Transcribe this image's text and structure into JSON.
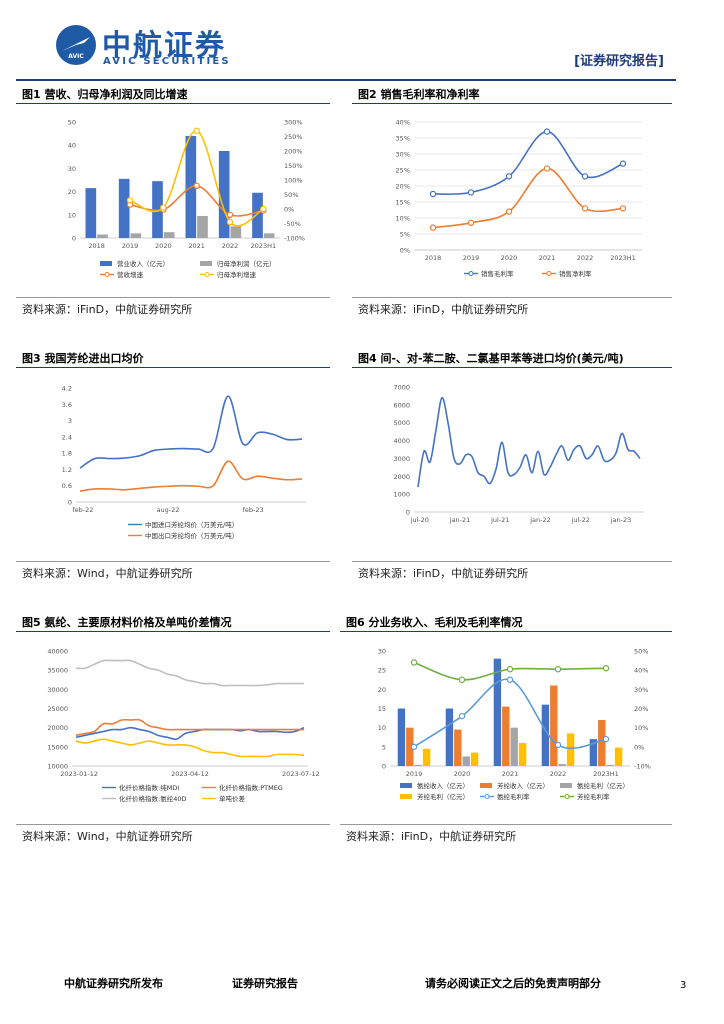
{
  "header": {
    "logo_cn": "中航证券",
    "logo_en": "AVIC SECURITIES",
    "logo_badge": "AVIC",
    "report_type": "[证券研究报告]"
  },
  "figures": [
    {
      "title": "图1 营收、归母净利润及同比增速",
      "source": "资料来源：iFinD，中航证券研究所"
    },
    {
      "title": "图2 销售毛利率和净利率",
      "source": "资料来源：iFinD，中航证券研究所"
    },
    {
      "title": "图3 我国芳纶进出口均价",
      "source": "资料来源：Wind，中航证券研究所"
    },
    {
      "title": "图4 间-、对-苯二胺、二氯基甲苯等进口均价(美元/吨)",
      "source": "资料来源：iFinD，中航证券研究所"
    },
    {
      "title": "图5 氨纶、主要原材料价格及单吨价差情况",
      "source": "资料来源：Wind，中航证券研究所"
    },
    {
      "title": "图6 分业务收入、毛利及毛利率情况",
      "source": "资料来源：iFinD，中航证券研究所"
    }
  ],
  "footer": {
    "left": "中航证券研究所发布",
    "center": "证券研究报告",
    "right": "请务必阅读正文之后的免责声明部分",
    "page": "3"
  },
  "chart_data": [
    {
      "type": "bar",
      "id": "c1",
      "categories": [
        "2018",
        "2019",
        "2020",
        "2021",
        "2022",
        "2023H1"
      ],
      "series": [
        {
          "name": "营业收入（亿元）",
          "kind": "bar",
          "axis": "left",
          "color": "#4472c4",
          "values": [
            21.5,
            25.5,
            24.5,
            44,
            37.5,
            19.5
          ]
        },
        {
          "name": "归母净利润（亿元）",
          "kind": "bar",
          "axis": "left",
          "color": "#a5a5a5",
          "values": [
            1.5,
            2,
            2.5,
            9.5,
            5,
            2
          ]
        },
        {
          "name": "营收增速",
          "kind": "line",
          "axis": "right",
          "color": "#ed7d31",
          "values": [
            null,
            15,
            -2,
            80,
            -20,
            -5
          ]
        },
        {
          "name": "归母净利增速",
          "kind": "line",
          "axis": "right",
          "color": "#ffc000",
          "values": [
            null,
            30,
            5,
            270,
            -45,
            0
          ]
        }
      ],
      "ylim": [
        0,
        50
      ],
      "yticks": [
        "0",
        "10",
        "20",
        "30",
        "40",
        "50"
      ],
      "y2lim": [
        -100,
        300
      ],
      "y2ticks": [
        "-100%",
        "-50%",
        "0%",
        "50%",
        "100%",
        "150%",
        "200%",
        "250%",
        "300%"
      ]
    },
    {
      "type": "line",
      "id": "c2",
      "categories": [
        "2018",
        "2019",
        "2020",
        "2021",
        "2022",
        "2023H1"
      ],
      "series": [
        {
          "name": "销售毛利率",
          "color": "#4472c4",
          "values": [
            17.5,
            18,
            23,
            37,
            23,
            27
          ]
        },
        {
          "name": "销售净利率",
          "color": "#ed7d31",
          "values": [
            7,
            8.5,
            12,
            25.5,
            13,
            13
          ]
        }
      ],
      "ylim": [
        0,
        40
      ],
      "yticks": [
        "0%",
        "5%",
        "10%",
        "15%",
        "20%",
        "25%",
        "30%",
        "35%",
        "40%"
      ]
    },
    {
      "type": "line",
      "id": "c3",
      "xticks": [
        "feb-22",
        "aug-22",
        "feb-23"
      ],
      "series": [
        {
          "name": "中国进口芳纶均价（万美元/吨）",
          "color": "#4472c4",
          "values": [
            1.25,
            1.6,
            1.6,
            1.62,
            1.7,
            1.9,
            1.95,
            1.97,
            1.95,
            1.98,
            3.9,
            2.15,
            2.55,
            2.5,
            2.3,
            2.32
          ]
        },
        {
          "name": "中国出口芳纶均价（万美元/吨）",
          "color": "#ed7d31",
          "values": [
            0.4,
            0.48,
            0.48,
            0.45,
            0.5,
            0.55,
            0.58,
            0.6,
            0.58,
            0.6,
            1.5,
            0.85,
            0.95,
            0.88,
            0.82,
            0.85
          ]
        }
      ],
      "ylim": [
        0,
        4.2
      ],
      "yticks": [
        "0",
        "0.6",
        "1.2",
        "1.8",
        "2.4",
        "3",
        "3.6",
        "4.2"
      ]
    },
    {
      "type": "line",
      "id": "c4",
      "xticks": [
        "jul-20",
        "jan-21",
        "jul-21",
        "jan-22",
        "jul-22",
        "jan-23"
      ],
      "series": [
        {
          "name": "进口均价",
          "color": "#4472c4",
          "values": [
            1400,
            3400,
            2800,
            4600,
            6400,
            5000,
            3000,
            2700,
            3200,
            3100,
            2200,
            2000,
            1600,
            2400,
            3900,
            2200,
            2100,
            2500,
            3200,
            2200,
            3400,
            2100,
            2500,
            3200,
            3700,
            2900,
            3500,
            3700,
            3000,
            3200,
            3700,
            2900,
            2900,
            3300,
            4400,
            3500,
            3400,
            3000
          ]
        }
      ],
      "ylim": [
        0,
        7000
      ],
      "yticks": [
        "0",
        "1000",
        "2000",
        "3000",
        "4000",
        "5000",
        "6000",
        "7000"
      ]
    },
    {
      "type": "line",
      "id": "c5",
      "xticks": [
        "2023-01-12",
        "2023-04-12",
        "2023-07-12"
      ],
      "series": [
        {
          "name": "化纤价格指数:纯MDI",
          "color": "#4472c4",
          "values": [
            17500,
            18000,
            18500,
            19000,
            19500,
            19500,
            20000,
            19500,
            19000,
            18000,
            17500,
            17000,
            18500,
            19000,
            19500,
            19500,
            19500,
            19500,
            19200,
            19500,
            19000,
            19000,
            19000,
            18800,
            19000,
            20000
          ]
        },
        {
          "name": "化纤价格指数:PTMEG",
          "color": "#ed7d31",
          "values": [
            18000,
            18500,
            19000,
            21000,
            21000,
            22000,
            22000,
            22000,
            20500,
            20000,
            19500,
            19500,
            19500,
            19500,
            19500,
            19500,
            19500,
            19500,
            19500,
            19500,
            19500,
            19500,
            19500,
            19500,
            19500,
            19500
          ]
        },
        {
          "name": "化纤价格指数:氨纶40D",
          "color": "#bfbfbf",
          "values": [
            35500,
            35500,
            36500,
            37500,
            37500,
            37500,
            37500,
            36500,
            35500,
            35000,
            34000,
            33500,
            32500,
            32000,
            31500,
            31500,
            31000,
            31000,
            31000,
            31000,
            31000,
            31200,
            31500,
            31500,
            31500,
            31500
          ]
        },
        {
          "name": "单吨价差",
          "color": "#ffc000",
          "values": [
            16500,
            16000,
            16500,
            17000,
            16500,
            16000,
            15500,
            16000,
            16500,
            16000,
            15500,
            15500,
            15500,
            15000,
            14000,
            13500,
            13500,
            13000,
            12500,
            12500,
            12500,
            12500,
            13000,
            13000,
            13000,
            12800
          ]
        }
      ],
      "ylim": [
        10000,
        40000
      ],
      "yticks": [
        "10000",
        "15000",
        "20000",
        "25000",
        "30000",
        "35000",
        "40000"
      ]
    },
    {
      "type": "bar",
      "id": "c6",
      "categories": [
        "2019",
        "2020",
        "2021",
        "2022",
        "2023H1"
      ],
      "series": [
        {
          "name": "氨纶收入（亿元）",
          "kind": "bar",
          "axis": "left",
          "color": "#4472c4",
          "values": [
            15,
            15,
            28,
            16,
            7
          ]
        },
        {
          "name": "芳纶收入（亿元）",
          "kind": "bar",
          "axis": "left",
          "color": "#ed7d31",
          "values": [
            10,
            9.5,
            15.5,
            21,
            12
          ]
        },
        {
          "name": "氨纶毛利（亿元）",
          "kind": "bar",
          "axis": "left",
          "color": "#a5a5a5",
          "values": [
            0.3,
            2.5,
            10,
            0.5,
            0.3
          ]
        },
        {
          "name": "芳纶毛利（亿元）",
          "kind": "bar",
          "axis": "left",
          "color": "#ffc000",
          "values": [
            4.5,
            3.5,
            6,
            8.5,
            4.8
          ]
        },
        {
          "name": "氨纶毛利率",
          "kind": "line",
          "axis": "right",
          "color": "#5b9bd5",
          "values": [
            0,
            16,
            35,
            1,
            4
          ]
        },
        {
          "name": "芳纶毛利率",
          "kind": "line",
          "axis": "right",
          "color": "#70ad47",
          "values": [
            44,
            35,
            40.5,
            40.5,
            41
          ]
        }
      ],
      "ylim": [
        0,
        30
      ],
      "yticks": [
        "0",
        "5",
        "10",
        "15",
        "20",
        "25",
        "30"
      ],
      "y2lim": [
        -10,
        50
      ],
      "y2ticks": [
        "-10%",
        "0%",
        "10%",
        "20%",
        "30%",
        "40%",
        "50%"
      ]
    }
  ]
}
